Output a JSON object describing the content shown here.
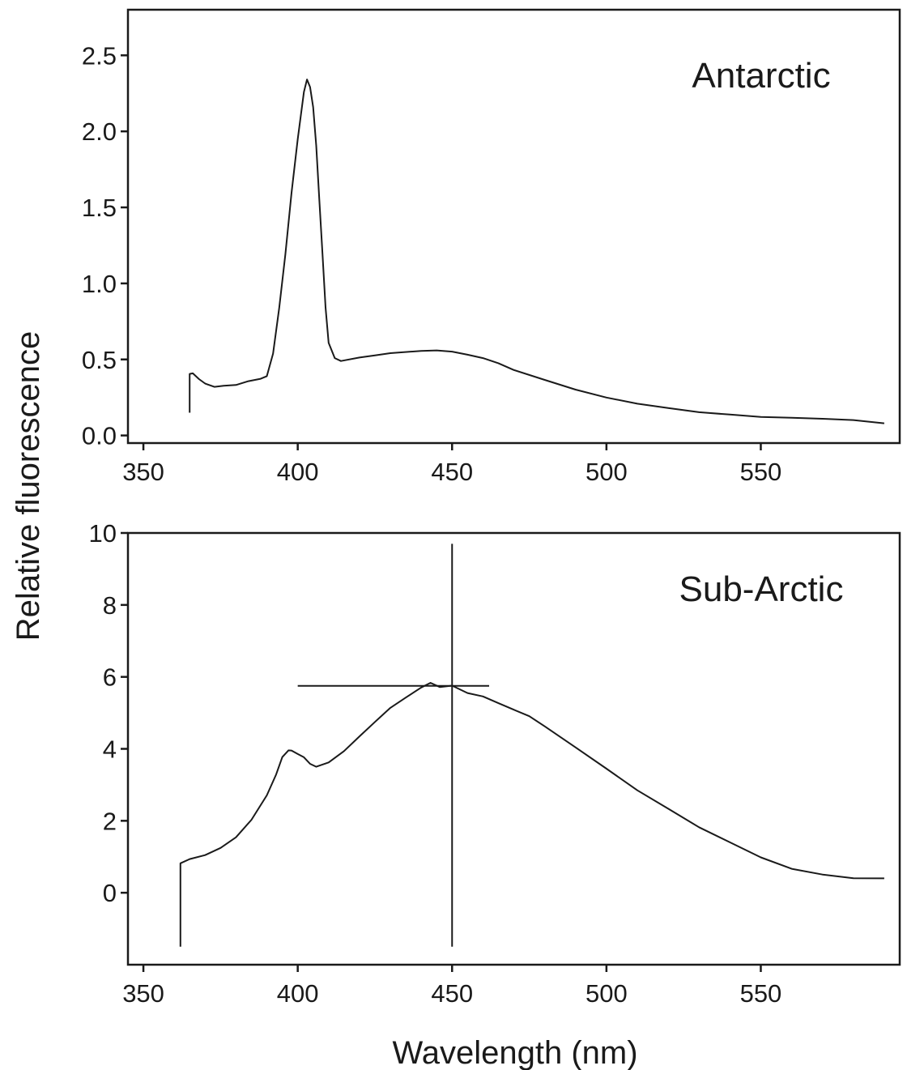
{
  "ylabel": "Relative fluorescence",
  "xlabel": "Wavelength (nm)",
  "chart_data": [
    {
      "type": "line",
      "panel_label": "Antarctic",
      "xlim": [
        345,
        595
      ],
      "ylim": [
        -0.05,
        2.8
      ],
      "xticks": [
        350,
        400,
        450,
        500,
        550
      ],
      "xtick_labels": [
        "350",
        "400",
        "450",
        "500",
        "550"
      ],
      "yticks": [
        0.0,
        0.5,
        1.0,
        1.5,
        2.0,
        2.5
      ],
      "ytick_labels": [
        "0.0",
        "0.5",
        "1.0",
        "1.5",
        "2.0",
        "2.5"
      ],
      "series": [
        {
          "x": [
            365,
            365,
            366,
            368,
            370,
            373,
            376,
            380,
            384,
            388,
            390,
            392,
            394,
            396,
            398,
            400,
            401,
            402,
            403,
            404,
            405,
            406,
            407,
            408,
            409,
            410,
            412,
            414,
            420,
            425,
            430,
            440,
            445,
            450,
            455,
            460,
            465,
            470,
            480,
            490,
            500,
            510,
            520,
            530,
            540,
            550,
            560,
            570,
            580,
            590
          ],
          "y": [
            0.15,
            0.4,
            0.4,
            0.36,
            0.33,
            0.31,
            0.32,
            0.33,
            0.36,
            0.38,
            0.4,
            0.55,
            0.85,
            1.2,
            1.6,
            1.95,
            2.1,
            2.25,
            2.33,
            2.28,
            2.15,
            1.9,
            1.55,
            1.2,
            0.85,
            0.62,
            0.52,
            0.5,
            0.52,
            0.53,
            0.54,
            0.55,
            0.55,
            0.54,
            0.52,
            0.5,
            0.47,
            0.43,
            0.37,
            0.31,
            0.26,
            0.22,
            0.19,
            0.16,
            0.14,
            0.12,
            0.11,
            0.1,
            0.09,
            0.08
          ]
        }
      ]
    },
    {
      "type": "line",
      "panel_label": "Sub-Arctic",
      "xlim": [
        345,
        595
      ],
      "ylim": [
        -2,
        10
      ],
      "xticks": [
        350,
        400,
        450,
        500,
        550
      ],
      "xtick_labels": [
        "350",
        "400",
        "450",
        "500",
        "550"
      ],
      "yticks": [
        0,
        2,
        4,
        6,
        8,
        10
      ],
      "ytick_labels": [
        "0",
        "2",
        "4",
        "6",
        "8",
        "10"
      ],
      "series": [
        {
          "x": [
            362,
            362,
            365,
            370,
            375,
            380,
            385,
            390,
            393,
            395,
            397,
            398,
            400,
            402,
            404,
            406,
            410,
            415,
            420,
            425,
            430,
            435,
            440,
            443,
            446,
            450,
            455,
            460,
            465,
            470,
            475,
            480,
            490,
            500,
            510,
            520,
            530,
            540,
            550,
            560,
            570,
            580,
            590
          ],
          "y": [
            -1.5,
            0.8,
            0.9,
            1.0,
            1.2,
            1.5,
            2.0,
            2.7,
            3.3,
            3.8,
            4.0,
            4.0,
            3.9,
            3.8,
            3.6,
            3.5,
            3.6,
            3.9,
            4.3,
            4.7,
            5.1,
            5.4,
            5.7,
            5.85,
            5.75,
            5.8,
            5.6,
            5.5,
            5.3,
            5.1,
            4.9,
            4.6,
            4.0,
            3.4,
            2.8,
            2.3,
            1.8,
            1.4,
            1.0,
            0.7,
            0.55,
            0.45,
            0.4
          ]
        }
      ],
      "annotations": {
        "vertical_line_x": 450,
        "vertical_line_y_range": [
          -1.5,
          9.7
        ],
        "horizontal_line_y": 5.75,
        "horizontal_line_x_range": [
          400,
          462
        ]
      }
    }
  ]
}
